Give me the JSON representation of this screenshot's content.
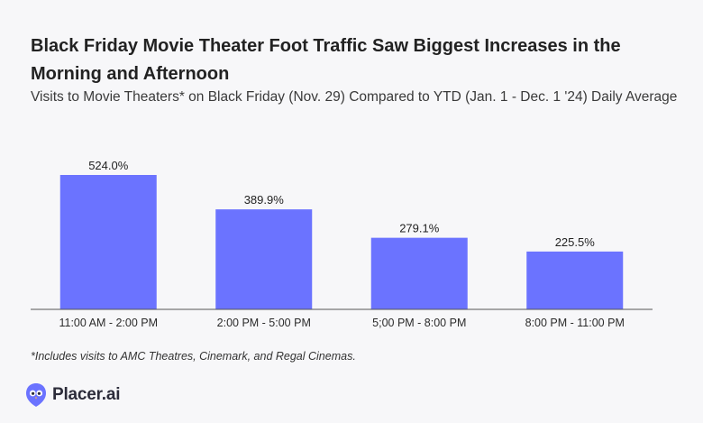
{
  "header": {
    "title": "Black Friday Movie Theater Foot Traffic Saw Biggest Increases in the Morning and Afternoon",
    "subtitle": "Visits to Movie Theaters* on Black Friday (Nov. 29) Compared to YTD (Jan. 1 - Dec. 1 '24) Daily Average"
  },
  "chart_data": {
    "type": "bar",
    "title": "Black Friday Movie Theater Foot Traffic Saw Biggest Increases in the Morning and Afternoon",
    "subtitle": "Visits to Movie Theaters* on Black Friday (Nov. 29) Compared to YTD (Jan. 1 - Dec. 1 '24) Daily Average",
    "categories": [
      "11:00 AM - 2:00 PM",
      "2:00 PM - 5:00 PM",
      "5;00 PM - 8:00 PM",
      "8:00 PM - 11:00 PM"
    ],
    "values": [
      524.0,
      389.9,
      279.1,
      225.5
    ],
    "value_labels": [
      "524.0%",
      "389.9%",
      "279.1%",
      "225.5%"
    ],
    "xlabel": "",
    "ylabel": "",
    "ylim": [
      0,
      524
    ],
    "grid": false,
    "bar_color": "#6b73ff"
  },
  "footer": {
    "footnote": "*Includes visits to AMC Theatres, Cinemark, and Regal Cinemas.",
    "brand": "Placer.ai",
    "brand_color": "#6b73ff"
  }
}
